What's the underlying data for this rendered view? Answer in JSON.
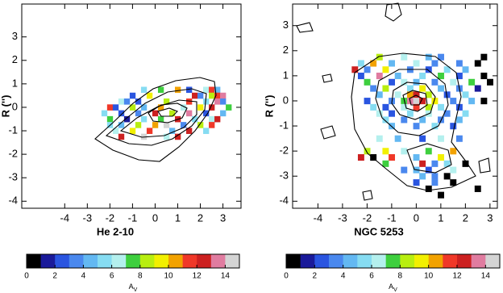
{
  "chart_data": [
    {
      "type": "heatmap",
      "xlabel": "He 2-10",
      "ylabel": "R ('')",
      "xlim": [
        -5.9,
        3.8
      ],
      "ylim": [
        -4.3,
        4.4
      ],
      "xticks": [
        -4,
        -3,
        -2,
        -1,
        0,
        1,
        2,
        3
      ],
      "yticks": [
        -4,
        -3,
        -2,
        -1,
        0,
        1,
        2,
        3
      ],
      "pixels": {
        "x": [
          -0.5,
          0.25,
          1.0,
          1.5,
          2.25,
          2.5,
          2.75,
          -1.0,
          -0.25,
          1.75,
          2.0,
          2.5,
          2.75,
          3.0,
          -1.5,
          -1.25,
          -0.75,
          0.5,
          1.5,
          2.25,
          2.75,
          3.0,
          -2.0,
          -1.75,
          -1.0,
          -0.5,
          0.25,
          1.25,
          2.0,
          2.5,
          3.25,
          -2.25,
          -1.5,
          -0.75,
          0,
          0.75,
          1.5,
          2.25,
          3.0,
          -2.0,
          -1.25,
          -0.5,
          0.25,
          1.0,
          1.75,
          2.5,
          2.75,
          -2.0,
          -1.5,
          -0.75,
          0,
          0.5,
          1.25,
          2.0,
          2.5,
          -1.75,
          -1.0,
          -0.25,
          0.75,
          1.5,
          2.25,
          -1.5,
          -0.5,
          0.5,
          1.0
        ],
        "y": [
          0.75,
          0.75,
          0.75,
          0.75,
          0.75,
          0.75,
          0.75,
          0.5,
          0.5,
          0.5,
          0.5,
          0.5,
          0.5,
          0.5,
          0.25,
          0.25,
          0.25,
          0.25,
          0.25,
          0.25,
          0.25,
          0.25,
          0,
          0,
          0,
          0,
          0,
          0,
          0,
          0,
          0,
          -0.25,
          -0.25,
          -0.25,
          -0.25,
          -0.25,
          -0.25,
          -0.25,
          -0.25,
          -0.5,
          -0.5,
          -0.5,
          -0.5,
          -0.5,
          -0.5,
          -0.5,
          -0.5,
          -0.75,
          -0.75,
          -0.75,
          -0.75,
          -0.75,
          -0.75,
          -0.75,
          -0.75,
          -1.0,
          -1.0,
          -1.0,
          -1.0,
          -1.0,
          -1.0,
          -1.25,
          -1.25,
          -1.25,
          -1.25
        ],
        "values": [
          5,
          7,
          10,
          2,
          6,
          11,
          4,
          2,
          9,
          12,
          3,
          8,
          11,
          13,
          6,
          3,
          2,
          8,
          11,
          5,
          13,
          3,
          11,
          2,
          8,
          4,
          10,
          6,
          9,
          12,
          7,
          5,
          2,
          3,
          12,
          8,
          13,
          2,
          4,
          7,
          1,
          5,
          7,
          12,
          5,
          6,
          12,
          5,
          4,
          8,
          10,
          14,
          3,
          8,
          11,
          6,
          9,
          11,
          4,
          12,
          5,
          12,
          14,
          6,
          12
        ]
      },
      "colorbar": {
        "lim": [
          0,
          15
        ],
        "ticks": [
          0,
          2,
          4,
          6,
          8,
          10,
          12,
          14
        ],
        "label": "A",
        "label_sub": "V",
        "colors": [
          "#000000",
          "#1a1a9a",
          "#2a55e0",
          "#4a88ee",
          "#63b8f2",
          "#86dcf2",
          "#b4f0ee",
          "#3ecf3e",
          "#b8ee10",
          "#f2f000",
          "#f2a200",
          "#f03828",
          "#cc2020",
          "#e07ca0",
          "#d4d4d4"
        ]
      }
    },
    {
      "type": "heatmap",
      "xlabel": "NGC 5253",
      "ylabel": "R ('')",
      "xlim": [
        -5.03,
        3.3
      ],
      "ylim": [
        -4.28,
        3.86
      ],
      "xticks": [
        -4,
        -3,
        -2,
        -1,
        0,
        1,
        2,
        3
      ],
      "yticks": [
        -4,
        -3,
        -2,
        -1,
        0,
        1,
        2,
        3
      ],
      "pixels": {
        "x": [
          -1.5,
          -0.5,
          0.5,
          1.0,
          2.75,
          -2.25,
          -1.75,
          -1.0,
          0,
          0.75,
          1.75,
          2.5,
          -2.5,
          -2.0,
          -1.25,
          -0.25,
          0.5,
          1.25,
          2.0,
          -2.25,
          -1.5,
          -0.75,
          0.25,
          1.0,
          1.75,
          2.75,
          -2.0,
          -1.0,
          -0.5,
          0,
          0.75,
          1.5,
          2.25,
          3.0,
          -1.75,
          -1.25,
          -0.25,
          0.25,
          1.0,
          1.75,
          2.5,
          -1.5,
          -0.75,
          -0.25,
          0,
          0.5,
          1.25,
          2.0,
          -2.0,
          -1.0,
          -0.5,
          -0.25,
          0,
          0.25,
          0.75,
          1.5,
          2.25,
          2.75,
          -1.75,
          -1.25,
          -0.5,
          0,
          0.5,
          1.0,
          1.75,
          -1.5,
          -1.0,
          -0.25,
          0.5,
          1.25,
          2.0,
          -1.25,
          -0.5,
          0.25,
          1.0,
          1.75,
          -1.0,
          0,
          0.75,
          1.5,
          -1.5,
          -0.75,
          0.25,
          1.0,
          1.75,
          -2.0,
          -1.25,
          -0.5,
          0.5,
          1.5,
          -2.25,
          -1.75,
          -1.0,
          0,
          1.0,
          -1.25,
          0.25,
          0.75,
          1.25,
          2.0,
          -0.5,
          0,
          0.5,
          1.5,
          0.25,
          0.75,
          1.25,
          0,
          0.75,
          1.5,
          0.5,
          2.5,
          1.0
        ],
        "y": [
          1.75,
          1.75,
          1.75,
          1.75,
          1.75,
          1.5,
          1.5,
          1.5,
          1.5,
          1.5,
          1.5,
          1.5,
          1.25,
          1.25,
          1.25,
          1.25,
          1.25,
          1.25,
          1.25,
          1.0,
          1.0,
          1.0,
          1.0,
          1.0,
          1.0,
          1.0,
          0.75,
          0.75,
          0.75,
          0.75,
          0.75,
          0.75,
          0.75,
          0.75,
          0.5,
          0.5,
          0.5,
          0.5,
          0.5,
          0.5,
          0.5,
          0.25,
          0.25,
          0.25,
          0.25,
          0.25,
          0.25,
          0.25,
          0,
          0,
          0,
          0,
          0,
          0,
          0,
          0,
          0,
          0,
          -0.25,
          -0.25,
          -0.25,
          -0.25,
          -0.25,
          -0.25,
          -0.25,
          -0.5,
          -0.5,
          -0.5,
          -0.5,
          -0.5,
          -0.5,
          -0.75,
          -0.75,
          -0.75,
          -0.75,
          -0.75,
          -1.0,
          -1.0,
          -1.0,
          -1.0,
          -1.5,
          -1.5,
          -1.5,
          -1.5,
          -1.5,
          -2.0,
          -2.0,
          -2.0,
          -2.0,
          -2.0,
          -2.25,
          -2.25,
          -2.25,
          -2.25,
          -2.25,
          -2.5,
          -2.5,
          -2.5,
          -2.5,
          -2.5,
          -2.75,
          -2.75,
          -2.75,
          -2.75,
          -3.0,
          -3.0,
          -3.0,
          -3.25,
          -3.25,
          -3.25,
          -3.5,
          -3.5,
          -3.75
        ],
        "values": [
          8,
          6,
          4,
          3,
          0,
          5,
          10,
          4,
          6,
          3,
          3,
          0,
          12,
          3,
          9,
          3,
          2,
          5,
          4,
          2,
          13,
          4,
          5,
          7,
          2,
          0,
          7,
          2,
          6,
          4,
          3,
          6,
          7,
          0,
          3,
          8,
          5,
          9,
          4,
          3,
          1,
          4,
          6,
          10,
          12,
          8,
          2,
          5,
          2,
          3,
          7,
          13,
          14,
          12,
          9,
          3,
          4,
          0,
          5,
          2,
          6,
          11,
          8,
          5,
          2,
          6,
          2,
          5,
          6,
          3,
          5,
          5,
          3,
          4,
          3,
          4,
          4,
          3,
          5,
          2,
          6,
          4,
          2,
          6,
          3,
          8,
          9,
          6,
          7,
          10,
          12,
          0,
          11,
          4,
          9,
          7,
          12,
          3,
          5,
          0,
          3,
          4,
          2,
          6,
          4,
          3,
          0,
          2,
          3,
          0,
          0,
          0,
          0
        ]
      },
      "colorbar": {
        "lim": [
          0,
          15
        ],
        "ticks": [
          0,
          2,
          4,
          6,
          8,
          10,
          12,
          14
        ],
        "label": "A",
        "label_sub": "V",
        "colors": [
          "#000000",
          "#1a1a9a",
          "#2a55e0",
          "#4a88ee",
          "#63b8f2",
          "#86dcf2",
          "#b4f0ee",
          "#3ecf3e",
          "#b8ee10",
          "#f2f000",
          "#f2a200",
          "#f03828",
          "#cc2020",
          "#e07ca0",
          "#d4d4d4"
        ]
      }
    }
  ]
}
